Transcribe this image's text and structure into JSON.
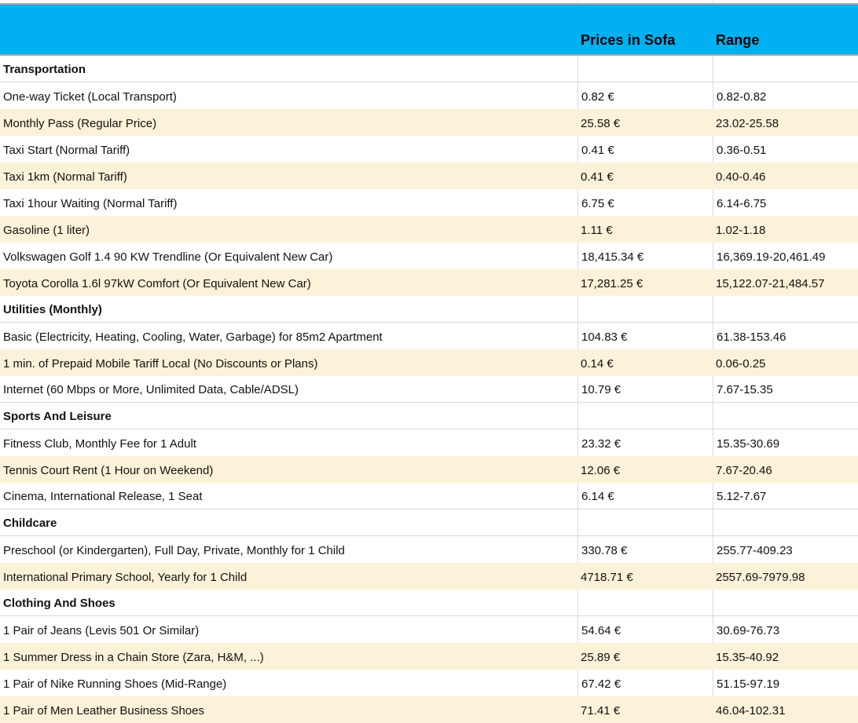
{
  "table": {
    "columns": [
      {
        "label": ""
      },
      {
        "label": "Prices in Sofa"
      },
      {
        "label": "Range"
      }
    ],
    "rows": [
      {
        "type": "category",
        "shade": "white",
        "item": "Transportation",
        "price": "",
        "range": ""
      },
      {
        "type": "data",
        "shade": "white",
        "item": "One-way Ticket (Local Transport)",
        "price": "0.82 €",
        "range": "0.82-0.82"
      },
      {
        "type": "data",
        "shade": "cream",
        "item": "Monthly Pass (Regular Price)",
        "price": "25.58 €",
        "range": "23.02-25.58"
      },
      {
        "type": "data",
        "shade": "white",
        "item": "Taxi Start (Normal Tariff)",
        "price": "0.41 €",
        "range": "0.36-0.51"
      },
      {
        "type": "data",
        "shade": "cream",
        "item": "Taxi 1km (Normal Tariff)",
        "price": "0.41 €",
        "range": "0.40-0.46"
      },
      {
        "type": "data",
        "shade": "white",
        "item": "Taxi 1hour Waiting (Normal Tariff)",
        "price": "6.75 €",
        "range": "6.14-6.75"
      },
      {
        "type": "data",
        "shade": "cream",
        "item": "Gasoline (1 liter)",
        "price": "1.11 €",
        "range": "1.02-1.18"
      },
      {
        "type": "data",
        "shade": "white",
        "item": "Volkswagen Golf 1.4 90 KW Trendline (Or Equivalent New Car)",
        "price": "18,415.34 €",
        "range": "16,369.19-20,461.49"
      },
      {
        "type": "data",
        "shade": "cream",
        "item": "Toyota Corolla 1.6l 97kW Comfort (Or Equivalent New Car)",
        "price": "17,281.25 €",
        "range": "15,122.07-21,484.57"
      },
      {
        "type": "category",
        "shade": "white",
        "item": "Utilities (Monthly)",
        "price": "",
        "range": ""
      },
      {
        "type": "data",
        "shade": "white",
        "item": "Basic (Electricity, Heating, Cooling, Water, Garbage) for 85m2 Apartment",
        "price": "104.83 €",
        "range": "61.38-153.46"
      },
      {
        "type": "data",
        "shade": "cream",
        "item": "1 min. of Prepaid Mobile Tariff Local (No Discounts or Plans)",
        "price": "0.14 €",
        "range": "0.06-0.25"
      },
      {
        "type": "data",
        "shade": "white",
        "item": "Internet (60 Mbps or More, Unlimited Data, Cable/ADSL)",
        "price": "10.79 €",
        "range": "7.67-15.35"
      },
      {
        "type": "category",
        "shade": "white",
        "item": "Sports And Leisure",
        "price": "",
        "range": ""
      },
      {
        "type": "data",
        "shade": "white",
        "item": "Fitness Club, Monthly Fee for 1 Adult",
        "price": "23.32 €",
        "range": "15.35-30.69"
      },
      {
        "type": "data",
        "shade": "cream",
        "item": "Tennis Court Rent (1 Hour on Weekend)",
        "price": "12.06 €",
        "range": "7.67-20.46"
      },
      {
        "type": "data",
        "shade": "white",
        "item": "Cinema, International Release, 1 Seat",
        "price": "6.14 €",
        "range": "5.12-7.67"
      },
      {
        "type": "category",
        "shade": "white",
        "item": "Childcare",
        "price": "",
        "range": ""
      },
      {
        "type": "data",
        "shade": "white",
        "item": "Preschool (or Kindergarten), Full Day, Private, Monthly for 1 Child",
        "price": "330.78 €",
        "range": "255.77-409.23"
      },
      {
        "type": "data",
        "shade": "cream",
        "item": "International Primary School, Yearly for 1 Child",
        "price": "4718.71 €",
        "range": "2557.69-7979.98"
      },
      {
        "type": "category",
        "shade": "white",
        "item": "Clothing And Shoes",
        "price": "",
        "range": ""
      },
      {
        "type": "data",
        "shade": "white",
        "item": "1 Pair of Jeans (Levis 501 Or Similar)",
        "price": "54.64 €",
        "range": "30.69-76.73"
      },
      {
        "type": "data",
        "shade": "cream",
        "item": "1 Summer Dress in a Chain Store (Zara, H&M, ...)",
        "price": "25.89 €",
        "range": "15.35-40.92"
      },
      {
        "type": "data",
        "shade": "white",
        "item": "1 Pair of Nike Running Shoes (Mid-Range)",
        "price": "67.42 €",
        "range": "51.15-97.19"
      },
      {
        "type": "data",
        "shade": "cream",
        "item": "1 Pair of Men Leather Business Shoes",
        "price": "71.41 €",
        "range": "46.04-102.31"
      }
    ]
  },
  "colors": {
    "header_bg": "#00b0f0",
    "row_alt_bg": "#fcf2d9",
    "gridline": "#d9d9d9",
    "header_border": "#a6a6a6",
    "text": "#111111"
  }
}
